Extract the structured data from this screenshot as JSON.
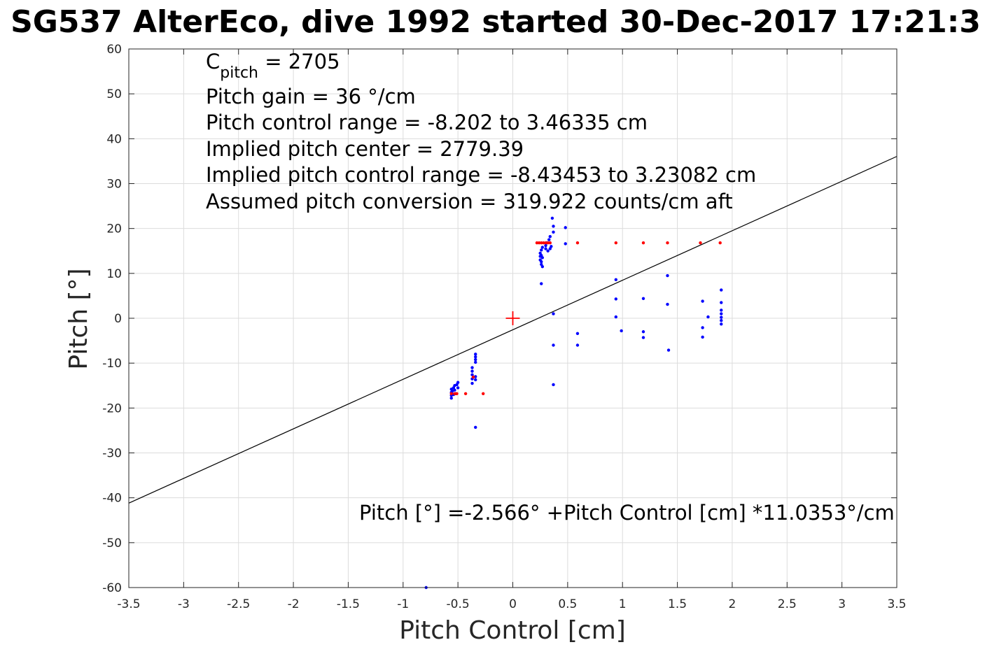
{
  "chart_data": {
    "type": "scatter",
    "title": "SG537 AlterEco, dive 1992 started 30-Dec-2017 17:21:3",
    "xlabel": "Pitch Control [cm]",
    "ylabel": "Pitch [°]",
    "xlim": [
      -3.5,
      3.5
    ],
    "ylim": [
      -60,
      60
    ],
    "xticks": [
      -3.5,
      -3,
      -2.5,
      -2,
      -1.5,
      -1,
      -0.5,
      0,
      0.5,
      1,
      1.5,
      2,
      2.5,
      3,
      3.5
    ],
    "xtick_labels": [
      "-3.5",
      "-3",
      "-2.5",
      "-2",
      "-1.5",
      "-1",
      "-0.5",
      "0",
      "0.5",
      "1",
      "1.5",
      "2",
      "2.5",
      "3",
      "3.5"
    ],
    "yticks": [
      -60,
      -50,
      -40,
      -30,
      -20,
      -10,
      0,
      10,
      20,
      30,
      40,
      50,
      60
    ],
    "ytick_labels": [
      "-60",
      "-50",
      "-40",
      "-30",
      "-20",
      "-10",
      "0",
      "10",
      "20",
      "30",
      "40",
      "50",
      "60"
    ],
    "grid": true,
    "annotations": {
      "c_pitch_base": "C",
      "c_pitch_sub": "pitch",
      "c_pitch_rest": " = 2705",
      "lines": [
        "Pitch gain = 36 °/cm",
        "Pitch control range = -8.202 to 3.46335 cm",
        "Implied pitch center = 2779.39",
        "Implied pitch control range = -8.43453 to 3.23082 cm",
        "Assumed pitch conversion = 319.922 counts/cm aft"
      ],
      "fit_equation": "Pitch [°] =-2.566° +Pitch Control [cm] *11.0353°/cm"
    },
    "fit_line": {
      "intercept": -2.566,
      "slope": 11.0353,
      "color": "#000000"
    },
    "center_marker": {
      "x": 0,
      "y": 0,
      "color": "#ff0000"
    },
    "series": [
      {
        "color": "#0000ff",
        "points": [
          [
            -0.56,
            -15.8
          ],
          [
            -0.56,
            -16.5
          ],
          [
            -0.56,
            -17.2
          ],
          [
            -0.56,
            -17.8
          ],
          [
            -0.55,
            -16.2
          ],
          [
            -0.55,
            -16.9
          ],
          [
            -0.54,
            -15.5
          ],
          [
            -0.54,
            -17.0
          ],
          [
            -0.53,
            -16.0
          ],
          [
            -0.53,
            -15.0
          ],
          [
            -0.52,
            -16.8
          ],
          [
            -0.51,
            -14.8
          ],
          [
            -0.5,
            -14.3
          ],
          [
            -0.5,
            -15.5
          ],
          [
            -0.37,
            -11.0
          ],
          [
            -0.37,
            -11.8
          ],
          [
            -0.37,
            -12.6
          ],
          [
            -0.37,
            -13.5
          ],
          [
            -0.37,
            -14.5
          ],
          [
            -0.34,
            -8.0
          ],
          [
            -0.34,
            -8.6
          ],
          [
            -0.34,
            -9.2
          ],
          [
            -0.34,
            -9.8
          ],
          [
            -0.34,
            -13.0
          ],
          [
            -0.34,
            -13.7
          ],
          [
            -0.34,
            -24.3
          ],
          [
            -0.79,
            -60.0
          ],
          [
            0.25,
            13.0
          ],
          [
            0.25,
            13.8
          ],
          [
            0.25,
            14.5
          ],
          [
            0.26,
            12.0
          ],
          [
            0.26,
            12.6
          ],
          [
            0.26,
            15.2
          ],
          [
            0.26,
            14.0
          ],
          [
            0.27,
            13.5
          ],
          [
            0.27,
            15.8
          ],
          [
            0.27,
            11.5
          ],
          [
            0.26,
            7.7
          ],
          [
            0.3,
            15.5
          ],
          [
            0.3,
            16.2
          ],
          [
            0.31,
            16.8
          ],
          [
            0.32,
            15.0
          ],
          [
            0.33,
            17.5
          ],
          [
            0.34,
            18.2
          ],
          [
            0.34,
            15.5
          ],
          [
            0.35,
            16.0
          ],
          [
            0.36,
            22.3
          ],
          [
            0.37,
            20.5
          ],
          [
            0.37,
            19.2
          ],
          [
            0.37,
            1.0
          ],
          [
            0.37,
            -6.0
          ],
          [
            0.37,
            -14.8
          ],
          [
            0.48,
            20.2
          ],
          [
            0.48,
            16.6
          ],
          [
            0.59,
            -3.4
          ],
          [
            0.59,
            -6.0
          ],
          [
            0.94,
            8.6
          ],
          [
            0.94,
            4.3
          ],
          [
            0.94,
            0.3
          ],
          [
            0.99,
            -2.8
          ],
          [
            1.19,
            4.4
          ],
          [
            1.19,
            -3.0
          ],
          [
            1.19,
            -4.3
          ],
          [
            1.41,
            9.5
          ],
          [
            1.41,
            3.1
          ],
          [
            1.42,
            -7.1
          ],
          [
            1.73,
            3.8
          ],
          [
            1.73,
            -2.1
          ],
          [
            1.73,
            -4.2
          ],
          [
            1.78,
            0.3
          ],
          [
            1.9,
            6.3
          ],
          [
            1.9,
            3.5
          ],
          [
            1.9,
            1.8
          ],
          [
            1.9,
            1.0
          ],
          [
            1.9,
            0.2
          ],
          [
            1.9,
            -0.5
          ],
          [
            1.9,
            -1.3
          ]
        ]
      },
      {
        "color": "#ff0000",
        "points": [
          [
            -0.56,
            -16.8
          ],
          [
            -0.53,
            -16.8
          ],
          [
            -0.51,
            -16.8
          ],
          [
            -0.43,
            -16.8
          ],
          [
            -0.27,
            -16.8
          ],
          [
            -0.36,
            -13.1
          ],
          [
            0.22,
            16.8
          ],
          [
            0.24,
            16.8
          ],
          [
            0.26,
            16.8
          ],
          [
            0.28,
            16.8
          ],
          [
            0.3,
            16.8
          ],
          [
            0.32,
            16.8
          ],
          [
            0.34,
            16.8
          ],
          [
            0.59,
            16.8
          ],
          [
            0.94,
            16.8
          ],
          [
            1.19,
            16.8
          ],
          [
            1.41,
            16.8
          ],
          [
            1.71,
            16.8
          ],
          [
            1.89,
            16.8
          ]
        ]
      }
    ]
  }
}
